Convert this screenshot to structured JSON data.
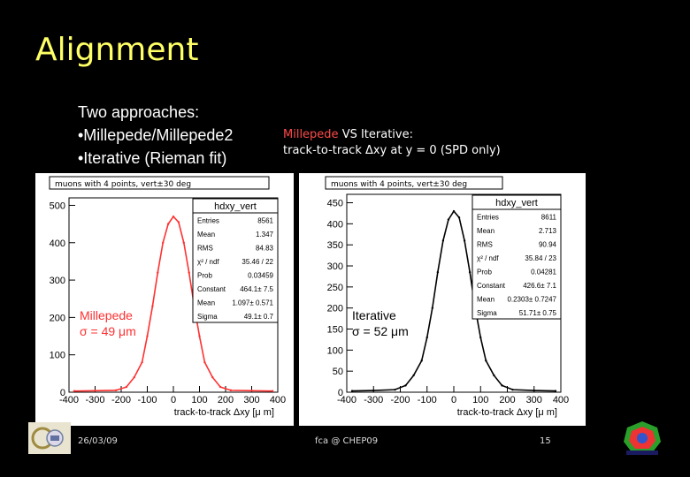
{
  "slide": {
    "title": "Alignment",
    "bullets": [
      "Two approaches:",
      "•Millepede/Millepede2",
      "•Iterative (Rieman fit)"
    ],
    "compare": {
      "red_word": "Millepede",
      "rest_line1": " VS Iterative:",
      "line2": "track-to-track Δxy at y = 0 (SPD only)"
    },
    "footer": {
      "date": "26/03/09",
      "center": "fca @ CHEP09",
      "page": "15"
    }
  },
  "colors": {
    "accent_title": "#ffff66",
    "millepede": "#ff3030",
    "iterative": "#000000"
  },
  "chart_data": [
    {
      "type": "line",
      "header": "muons with 4 points, vert±30 deg",
      "stats_title": "hdxy_vert",
      "stats": [
        [
          "Entries",
          "8561"
        ],
        [
          "Mean",
          "1.347"
        ],
        [
          "RMS",
          "84.83"
        ],
        [
          "χ² / ndf",
          "35.46 / 22"
        ],
        [
          "Prob",
          "0.03459"
        ],
        [
          "Constant",
          "464.1± 7.5"
        ],
        [
          "Mean",
          "1.097± 0.571"
        ],
        [
          "Sigma",
          "49.1± 0.7"
        ]
      ],
      "annotation": [
        "Millepede",
        "σ = 49 μm"
      ],
      "xlabel": "track-to-track Δxy [μ m]",
      "xlim": [
        -400,
        400
      ],
      "ylim": [
        0,
        520
      ],
      "yticks": [
        0,
        100,
        200,
        300,
        400,
        500
      ],
      "xticks": [
        -400,
        -300,
        -200,
        -100,
        0,
        100,
        200,
        300,
        400
      ],
      "xticklabels": [
        "-400",
        "-300",
        "-200",
        "-100",
        "0",
        "100",
        "200",
        "300",
        "400"
      ],
      "series": [
        {
          "color": "#ff3030",
          "x": [
            -380,
            -300,
            -220,
            -180,
            -150,
            -120,
            -100,
            -80,
            -60,
            -40,
            -20,
            0,
            20,
            40,
            60,
            80,
            100,
            120,
            150,
            180,
            220,
            300,
            380
          ],
          "values": [
            3,
            4,
            5,
            14,
            40,
            80,
            150,
            230,
            320,
            400,
            450,
            470,
            455,
            400,
            320,
            230,
            150,
            80,
            40,
            14,
            5,
            4,
            3
          ]
        }
      ]
    },
    {
      "type": "line",
      "header": "muons with 4 points, vert±30 deg",
      "stats_title": "hdxy_vert",
      "stats": [
        [
          "Entries",
          "8611"
        ],
        [
          "Mean",
          "2.713"
        ],
        [
          "RMS",
          "90.94"
        ],
        [
          "χ² / ndf",
          "35.84 / 23"
        ],
        [
          "Prob",
          "0.04281"
        ],
        [
          "Constant",
          "426.6± 7.1"
        ],
        [
          "Mean",
          "0.2303± 0.7247"
        ],
        [
          "Sigma",
          "51.71± 0.75"
        ]
      ],
      "annotation": [
        "Iterative",
        "σ = 52 μm"
      ],
      "xlabel": "track-to-track Δxy [μ m]",
      "xlim": [
        -400,
        400
      ],
      "ylim": [
        0,
        470
      ],
      "yticks": [
        0,
        50,
        100,
        150,
        200,
        250,
        300,
        350,
        400,
        450
      ],
      "xticks": [
        -400,
        -300,
        -200,
        -100,
        0,
        100,
        200,
        300,
        400
      ],
      "xticklabels": [
        "-400",
        "-300",
        "-200",
        "-100",
        "0",
        "100",
        "200",
        "300",
        "400"
      ],
      "series": [
        {
          "color": "#000000",
          "x": [
            -380,
            -300,
            -220,
            -180,
            -150,
            -120,
            -100,
            -80,
            -60,
            -40,
            -20,
            0,
            20,
            40,
            60,
            80,
            100,
            120,
            150,
            180,
            220,
            300,
            380
          ],
          "values": [
            3,
            4,
            6,
            16,
            40,
            75,
            130,
            200,
            285,
            360,
            410,
            430,
            415,
            360,
            285,
            200,
            130,
            75,
            40,
            16,
            6,
            4,
            3
          ]
        }
      ]
    }
  ]
}
